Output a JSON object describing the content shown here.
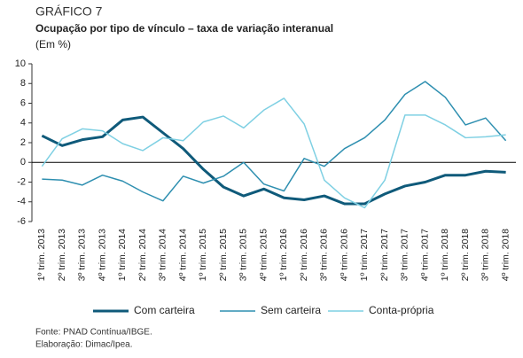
{
  "chart_data": {
    "type": "line",
    "title": "GRÁFICO 7",
    "subtitle": "Ocupação por tipo de vínculo – taxa de variação interanual",
    "unit": "(Em %)",
    "categories": [
      "1º trim. 2013",
      "2º trim. 2013",
      "3º trim. 2013",
      "4º trim. 2013",
      "1º trim. 2014",
      "2º trim. 2014",
      "3º trim. 2014",
      "4º trim. 2014",
      "1º trim. 2015",
      "2º trim. 2015",
      "3º trim. 2015",
      "4º trim. 2015",
      "1º trim. 2016",
      "2º trim. 2016",
      "3º trim. 2016",
      "4º trim. 2016",
      "1º trim. 2017",
      "2º trim. 2017",
      "3º trim. 2017",
      "4º trim. 2017",
      "1º trim. 2018",
      "2º trim. 2018",
      "3º trim. 2018",
      "4º trim. 2018"
    ],
    "series": [
      {
        "name": "Com carteira",
        "color": "#0f5a7a",
        "width": 3,
        "values": [
          2.7,
          1.7,
          2.3,
          2.6,
          4.3,
          4.6,
          3.0,
          1.4,
          -0.7,
          -2.5,
          -3.4,
          -2.7,
          -3.6,
          -3.8,
          -3.4,
          -4.2,
          -4.2,
          -3.2,
          -2.4,
          -2.0,
          -1.3,
          -1.3,
          -0.9,
          -1.0
        ]
      },
      {
        "name": "Sem carteira",
        "color": "#2e8fb0",
        "width": 1.5,
        "values": [
          -1.7,
          -1.8,
          -2.3,
          -1.3,
          -1.9,
          -3.0,
          -3.9,
          -1.4,
          -2.1,
          -1.4,
          0.0,
          -2.2,
          -2.9,
          0.4,
          -0.4,
          1.4,
          2.5,
          4.3,
          6.9,
          8.2,
          6.6,
          3.8,
          4.5,
          2.2
        ]
      },
      {
        "name": "Conta-própria",
        "color": "#7fd0e3",
        "width": 1.5,
        "values": [
          -0.4,
          2.4,
          3.4,
          3.2,
          1.9,
          1.2,
          2.5,
          2.2,
          4.1,
          4.7,
          3.5,
          5.3,
          6.5,
          3.9,
          -1.8,
          -3.6,
          -4.6,
          -1.8,
          4.8,
          4.8,
          3.8,
          2.5,
          2.6,
          2.8
        ]
      }
    ],
    "ylim": [
      -6,
      10
    ],
    "yticks": [
      -6,
      -4,
      -2,
      0,
      2,
      4,
      6,
      8,
      10
    ],
    "grid": false,
    "legend": "bottom",
    "notes": [
      "Fonte: PNAD Contínua/IBGE.",
      "Elaboração: Dimac/Ipea."
    ]
  }
}
